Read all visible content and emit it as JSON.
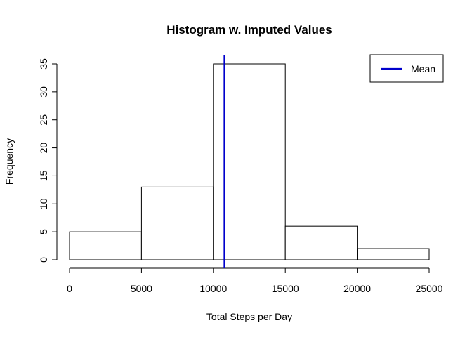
{
  "chart_data": {
    "type": "bar",
    "title": "Histogram w. Imputed Values",
    "xlabel": "Total Steps per Day",
    "ylabel": "Frequency",
    "bins": [
      {
        "from": 0,
        "to": 5000,
        "count": 5
      },
      {
        "from": 5000,
        "to": 10000,
        "count": 13
      },
      {
        "from": 10000,
        "to": 15000,
        "count": 35
      },
      {
        "from": 15000,
        "to": 20000,
        "count": 6
      },
      {
        "from": 20000,
        "to": 25000,
        "count": 2
      }
    ],
    "xlim": [
      0,
      25000
    ],
    "ylim": [
      0,
      35
    ],
    "xticks": [
      0,
      5000,
      10000,
      15000,
      20000,
      25000
    ],
    "yticks": [
      0,
      5,
      10,
      15,
      20,
      25,
      30,
      35
    ],
    "mean": 10766,
    "mean_color": "#0000cc",
    "bar_fill": "#ffffff",
    "bar_stroke": "#000000",
    "legend": {
      "position": "top-right",
      "entries": [
        {
          "label": "Mean",
          "color": "#0000cc"
        }
      ]
    },
    "grid": false
  }
}
